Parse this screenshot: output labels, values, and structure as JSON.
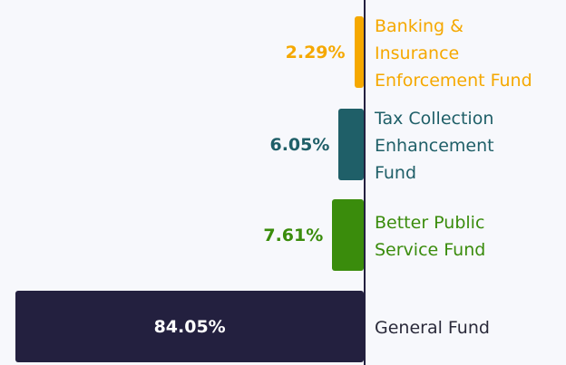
{
  "chart_data": {
    "type": "barh",
    "categories": [
      "Banking &\nInsurance\nEnforcement Fund",
      "Tax Collection\nEnhancement\nFund",
      "Better Public\nService Fund",
      "General Fund"
    ],
    "values": [
      2.29,
      6.05,
      7.61,
      84.05
    ],
    "value_labels": [
      "2.29%",
      "6.05%",
      "7.61%",
      "84.05%"
    ],
    "colors": [
      "#f5a800",
      "#1f5f68",
      "#3a8c0c",
      "#23203f"
    ],
    "xlim": [
      0,
      85
    ]
  }
}
